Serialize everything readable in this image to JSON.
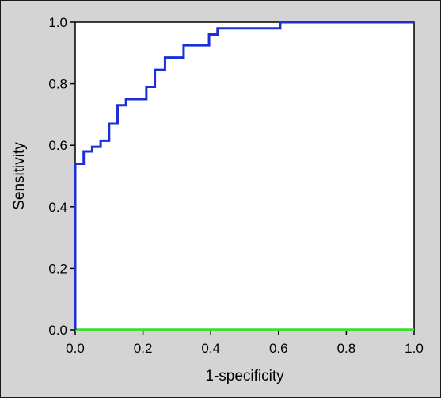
{
  "chart_data": {
    "type": "line",
    "title": "",
    "xlabel": "1-specificity",
    "ylabel": "Sensitivity",
    "xlim": [
      0,
      1
    ],
    "ylim": [
      0,
      1
    ],
    "x_ticks": [
      "0.0",
      "0.2",
      "0.4",
      "0.6",
      "0.8",
      "1.0"
    ],
    "y_ticks": [
      "0.0",
      "0.2",
      "0.4",
      "0.6",
      "0.8",
      "1.0"
    ],
    "grid": false,
    "legend": "none",
    "series": [
      {
        "color": "#1a2fd6",
        "step": true,
        "points": [
          [
            0.0,
            0.0
          ],
          [
            0.0,
            0.54
          ],
          [
            0.025,
            0.54
          ],
          [
            0.025,
            0.58
          ],
          [
            0.05,
            0.58
          ],
          [
            0.05,
            0.595
          ],
          [
            0.075,
            0.595
          ],
          [
            0.075,
            0.615
          ],
          [
            0.1,
            0.615
          ],
          [
            0.1,
            0.67
          ],
          [
            0.125,
            0.67
          ],
          [
            0.125,
            0.73
          ],
          [
            0.15,
            0.73
          ],
          [
            0.15,
            0.75
          ],
          [
            0.21,
            0.75
          ],
          [
            0.21,
            0.79
          ],
          [
            0.235,
            0.79
          ],
          [
            0.235,
            0.845
          ],
          [
            0.265,
            0.845
          ],
          [
            0.265,
            0.885
          ],
          [
            0.32,
            0.885
          ],
          [
            0.32,
            0.925
          ],
          [
            0.395,
            0.925
          ],
          [
            0.395,
            0.96
          ],
          [
            0.42,
            0.96
          ],
          [
            0.42,
            0.98
          ],
          [
            0.605,
            0.98
          ],
          [
            0.605,
            1.0
          ],
          [
            1.0,
            1.0
          ]
        ]
      },
      {
        "color": "#3ddc2e",
        "step": false,
        "points": [
          [
            0.0,
            0.0
          ],
          [
            1.0,
            0.0
          ]
        ]
      }
    ]
  }
}
